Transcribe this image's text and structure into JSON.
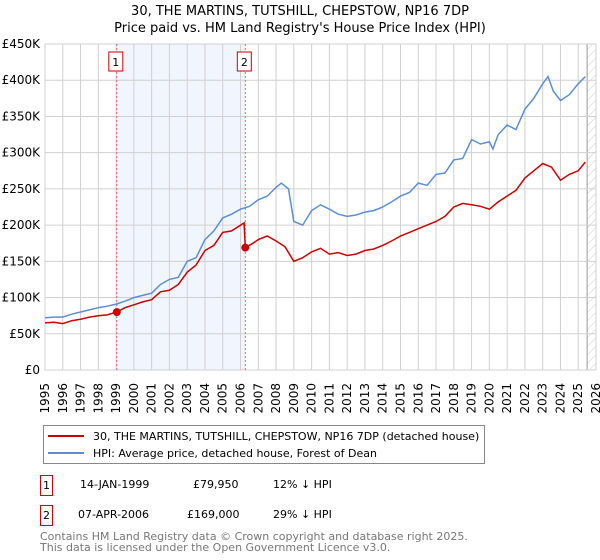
{
  "chart_data": {
    "type": "line",
    "title": "30, THE MARTINS, TUTSHILL, CHEPSTOW, NP16 7DP",
    "subtitle": "Price paid vs. HM Land Registry's House Price Index (HPI)",
    "xlim": [
      1995,
      2026
    ],
    "ylim": [
      0,
      450000
    ],
    "x_ticks": [
      "1995",
      "1996",
      "1997",
      "1998",
      "1999",
      "2000",
      "2001",
      "2002",
      "2003",
      "2004",
      "2005",
      "2006",
      "2007",
      "2008",
      "2009",
      "2010",
      "2011",
      "2012",
      "2013",
      "2014",
      "2015",
      "2016",
      "2017",
      "2018",
      "2019",
      "2020",
      "2021",
      "2022",
      "2023",
      "2024",
      "2025",
      "2026"
    ],
    "y_ticks": [
      {
        "v": 0,
        "label": "£0"
      },
      {
        "v": 50000,
        "label": "£50K"
      },
      {
        "v": 100000,
        "label": "£100K"
      },
      {
        "v": 150000,
        "label": "£150K"
      },
      {
        "v": 200000,
        "label": "£200K"
      },
      {
        "v": 250000,
        "label": "£250K"
      },
      {
        "v": 300000,
        "label": "£300K"
      },
      {
        "v": 350000,
        "label": "£350K"
      },
      {
        "v": 400000,
        "label": "£400K"
      },
      {
        "v": 450000,
        "label": "£450K"
      }
    ],
    "grid": true,
    "shaded_range": [
      1999.04,
      2006.27
    ],
    "forecast_hatch_from": 2025.5,
    "series": [
      {
        "name": "30, THE MARTINS, TUTSHILL, CHEPSTOW, NP16 7DP (detached house)",
        "color": "#cc0000",
        "x": [
          1995,
          1995.5,
          1996,
          1996.5,
          1997,
          1997.5,
          1998,
          1998.5,
          1999.04,
          1999.5,
          2000,
          2000.5,
          2001,
          2001.5,
          2002,
          2002.5,
          2003,
          2003.5,
          2004,
          2004.5,
          2005,
          2005.5,
          2006.2,
          2006.27,
          2006.7,
          2007,
          2007.5,
          2008,
          2008.5,
          2009,
          2009.5,
          2010,
          2010.5,
          2011,
          2011.5,
          2012,
          2012.5,
          2013,
          2013.5,
          2014,
          2014.5,
          2015,
          2015.5,
          2016,
          2016.5,
          2017,
          2017.5,
          2018,
          2018.5,
          2019,
          2019.5,
          2020,
          2020.5,
          2021,
          2021.5,
          2022,
          2022.5,
          2023,
          2023.5,
          2024,
          2024.5,
          2025,
          2025.4
        ],
        "y": [
          65000,
          66000,
          64000,
          68000,
          70000,
          73000,
          75000,
          76000,
          79950,
          86000,
          90000,
          94000,
          97000,
          108000,
          110000,
          118000,
          135000,
          145000,
          165000,
          172000,
          190000,
          192000,
          203000,
          169000,
          175000,
          180000,
          185000,
          178000,
          170000,
          150000,
          155000,
          163000,
          168000,
          160000,
          162000,
          158000,
          160000,
          165000,
          167000,
          172000,
          178000,
          185000,
          190000,
          195000,
          200000,
          205000,
          212000,
          225000,
          230000,
          228000,
          226000,
          222000,
          232000,
          240000,
          248000,
          265000,
          275000,
          285000,
          280000,
          262000,
          270000,
          275000,
          287000
        ]
      },
      {
        "name": "HPI: Average price, detached house, Forest of Dean",
        "color": "#5b8fd0",
        "x": [
          1995,
          1995.5,
          1996,
          1996.5,
          1997,
          1997.5,
          1998,
          1998.5,
          1999,
          1999.5,
          2000,
          2000.5,
          2001,
          2001.5,
          2002,
          2002.5,
          2003,
          2003.5,
          2004,
          2004.5,
          2005,
          2005.5,
          2006,
          2006.5,
          2007,
          2007.5,
          2008,
          2008.3,
          2008.7,
          2009,
          2009.5,
          2010,
          2010.5,
          2011,
          2011.5,
          2012,
          2012.5,
          2013,
          2013.5,
          2014,
          2014.5,
          2015,
          2015.5,
          2016,
          2016.5,
          2017,
          2017.5,
          2018,
          2018.5,
          2019,
          2019.5,
          2020,
          2020.2,
          2020.5,
          2021,
          2021.5,
          2022,
          2022.5,
          2023,
          2023.3,
          2023.6,
          2024,
          2024.5,
          2025,
          2025.4
        ],
        "y": [
          72000,
          73000,
          73000,
          77000,
          80000,
          83000,
          86000,
          88000,
          91000,
          95000,
          100000,
          103000,
          106000,
          118000,
          125000,
          128000,
          150000,
          155000,
          180000,
          192000,
          210000,
          215000,
          222000,
          226000,
          235000,
          240000,
          252000,
          258000,
          250000,
          205000,
          200000,
          220000,
          228000,
          222000,
          215000,
          212000,
          214000,
          218000,
          220000,
          225000,
          232000,
          240000,
          245000,
          258000,
          255000,
          270000,
          272000,
          290000,
          292000,
          318000,
          312000,
          315000,
          305000,
          325000,
          338000,
          332000,
          360000,
          375000,
          395000,
          405000,
          385000,
          372000,
          380000,
          395000,
          405000
        ]
      }
    ],
    "markers": [
      {
        "label": "1",
        "x": 1999.04,
        "y": 79950
      },
      {
        "label": "2",
        "x": 2006.27,
        "y": 169000
      }
    ]
  },
  "legend": {
    "red": "30, THE MARTINS, TUTSHILL, CHEPSTOW, NP16 7DP (detached house)",
    "blue": "HPI: Average price, detached house, Forest of Dean"
  },
  "transactions": [
    {
      "num": "1",
      "date": "14-JAN-1999",
      "price": "£79,950",
      "hpi": "12% ↓ HPI"
    },
    {
      "num": "2",
      "date": "07-APR-2006",
      "price": "£169,000",
      "hpi": "29% ↓ HPI"
    }
  ],
  "footer": {
    "line1": "Contains HM Land Registry data © Crown copyright and database right 2025.",
    "line2": "This data is licensed under the Open Government Licence v3.0."
  }
}
